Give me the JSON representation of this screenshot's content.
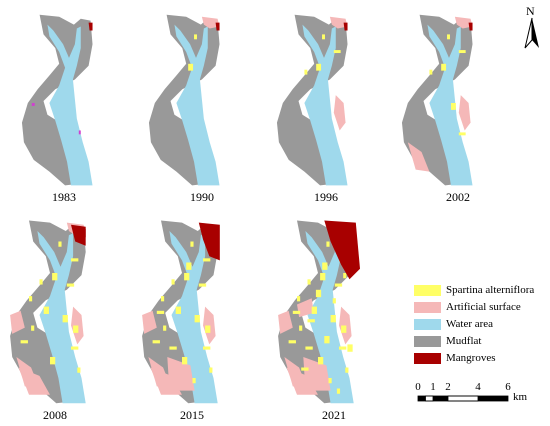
{
  "panels": [
    {
      "year": "1983"
    },
    {
      "year": "1990"
    },
    {
      "year": "1996"
    },
    {
      "year": "2002"
    },
    {
      "year": "2008"
    },
    {
      "year": "2015"
    },
    {
      "year": "2021"
    }
  ],
  "legend": [
    {
      "label": "Spartina alterniflora",
      "color": "#ffff66"
    },
    {
      "label": "Artificial surface",
      "color": "#f5b8b8"
    },
    {
      "label": "Water area",
      "color": "#9fd9ec"
    },
    {
      "label": "Mudflat",
      "color": "#999999"
    },
    {
      "label": "Mangroves",
      "color": "#a80000"
    }
  ],
  "colors": {
    "mudflat": "#999999",
    "water": "#9fd9ec",
    "artificial": "#f5b8b8",
    "spartina": "#ffff66",
    "mangrove": "#a80000",
    "magenta": "#d040d0"
  },
  "north_arrow": {
    "label": "N",
    "icon": "north-arrow-icon"
  },
  "scale_bar": {
    "ticks": [
      "0",
      "1",
      "2",
      "4",
      "6"
    ],
    "tick_values_km": [
      0,
      1,
      2,
      4,
      6
    ],
    "unit": "km"
  }
}
